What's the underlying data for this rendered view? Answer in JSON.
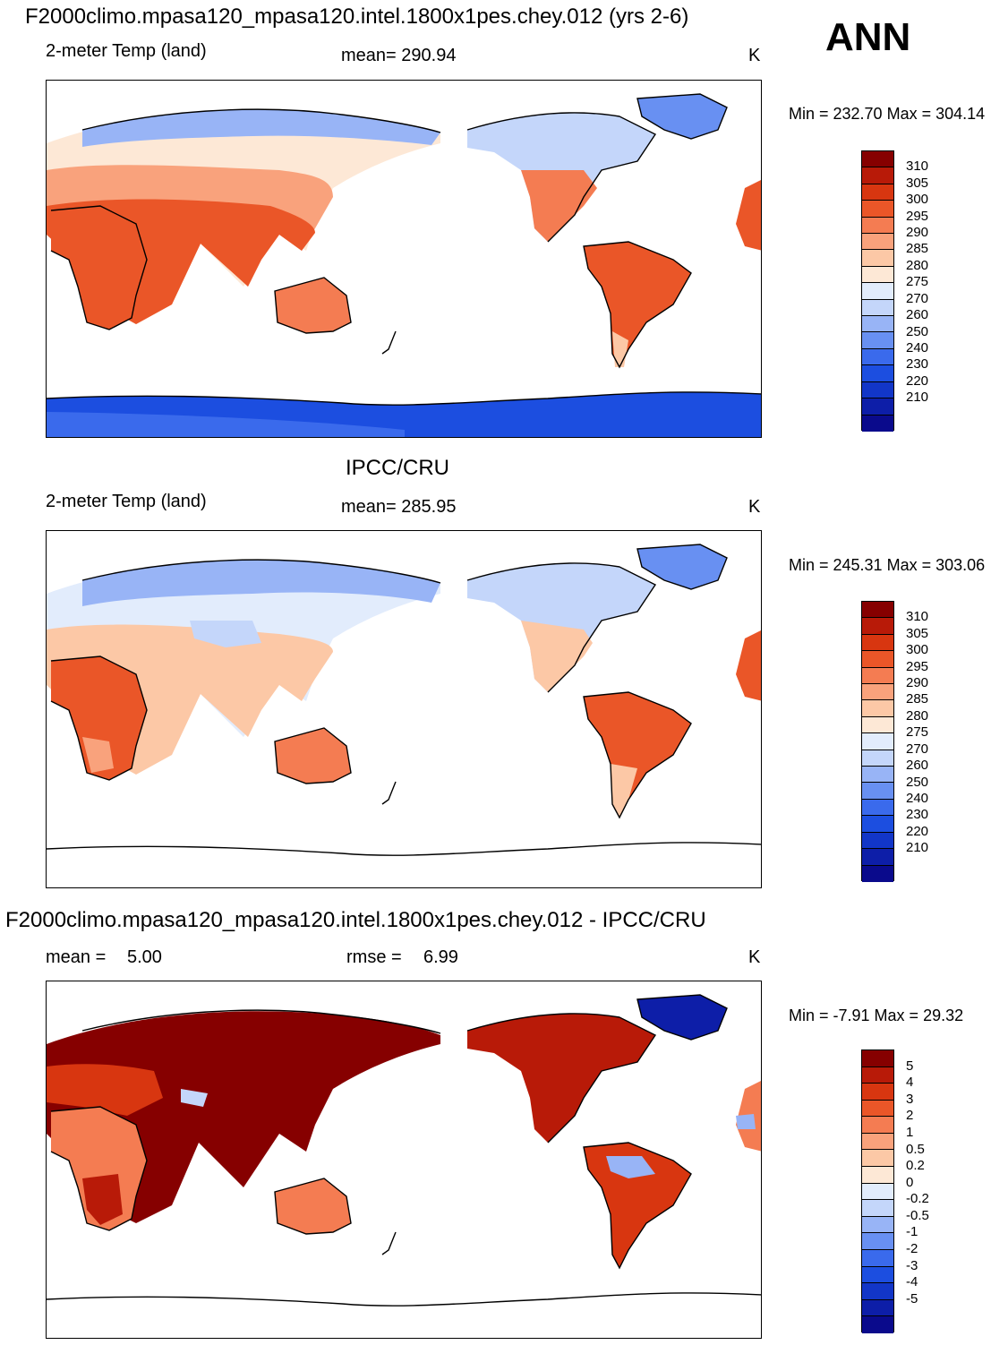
{
  "season": "ANN",
  "palettes": {
    "temp": [
      "#0a0a8c",
      "#0d1ea8",
      "#1236c8",
      "#1c4ee0",
      "#3a6aec",
      "#6890f2",
      "#98b4f6",
      "#c4d6fa",
      "#e2ecfc",
      "#fde8d6",
      "#fcc8a6",
      "#f9a27c",
      "#f47c52",
      "#ea5628",
      "#d83610",
      "#b81a08",
      "#860000"
    ],
    "diff": [
      "#0a0a8c",
      "#0d1ea8",
      "#1236c8",
      "#1c4ee0",
      "#3a6aec",
      "#6890f2",
      "#98b4f6",
      "#c4d6fa",
      "#e2ecfc",
      "#fde8d6",
      "#fcc8a6",
      "#f9a27c",
      "#f47c52",
      "#ea5628",
      "#d83610",
      "#b81a08",
      "#860000"
    ]
  },
  "panels": [
    {
      "title": "F2000climo.mpasa120_mpasa120.intel.1800x1pes.chey.012 (yrs 2-6)",
      "variable": "2-meter Temp (land)",
      "stat": "mean= 290.94",
      "units": "K",
      "minmax": "Min = 232.70 Max = 304.14",
      "colorbar_labels": [
        "310",
        "305",
        "300",
        "295",
        "290",
        "285",
        "280",
        "275",
        "270",
        "260",
        "250",
        "240",
        "230",
        "220",
        "210"
      ]
    },
    {
      "title": "IPCC/CRU",
      "variable": "2-meter Temp (land)",
      "stat": "mean= 285.95",
      "units": "K",
      "minmax": "Min = 245.31 Max = 303.06",
      "colorbar_labels": [
        "310",
        "305",
        "300",
        "295",
        "290",
        "285",
        "280",
        "275",
        "270",
        "260",
        "250",
        "240",
        "230",
        "220",
        "210"
      ]
    },
    {
      "title": "F2000climo.mpasa120_mpasa120.intel.1800x1pes.chey.012 - IPCC/CRU",
      "mean_label": "mean =",
      "mean_value": "5.00",
      "rmse_label": "rmse =",
      "rmse_value": "6.99",
      "units": "K",
      "minmax": "Min =  -7.91 Max =  29.32",
      "colorbar_labels": [
        "5",
        "4",
        "3",
        "2",
        "1",
        "0.5",
        "0.2",
        "0",
        "-0.2",
        "-0.5",
        "-1",
        "-2",
        "-3",
        "-4",
        "-5"
      ]
    }
  ]
}
